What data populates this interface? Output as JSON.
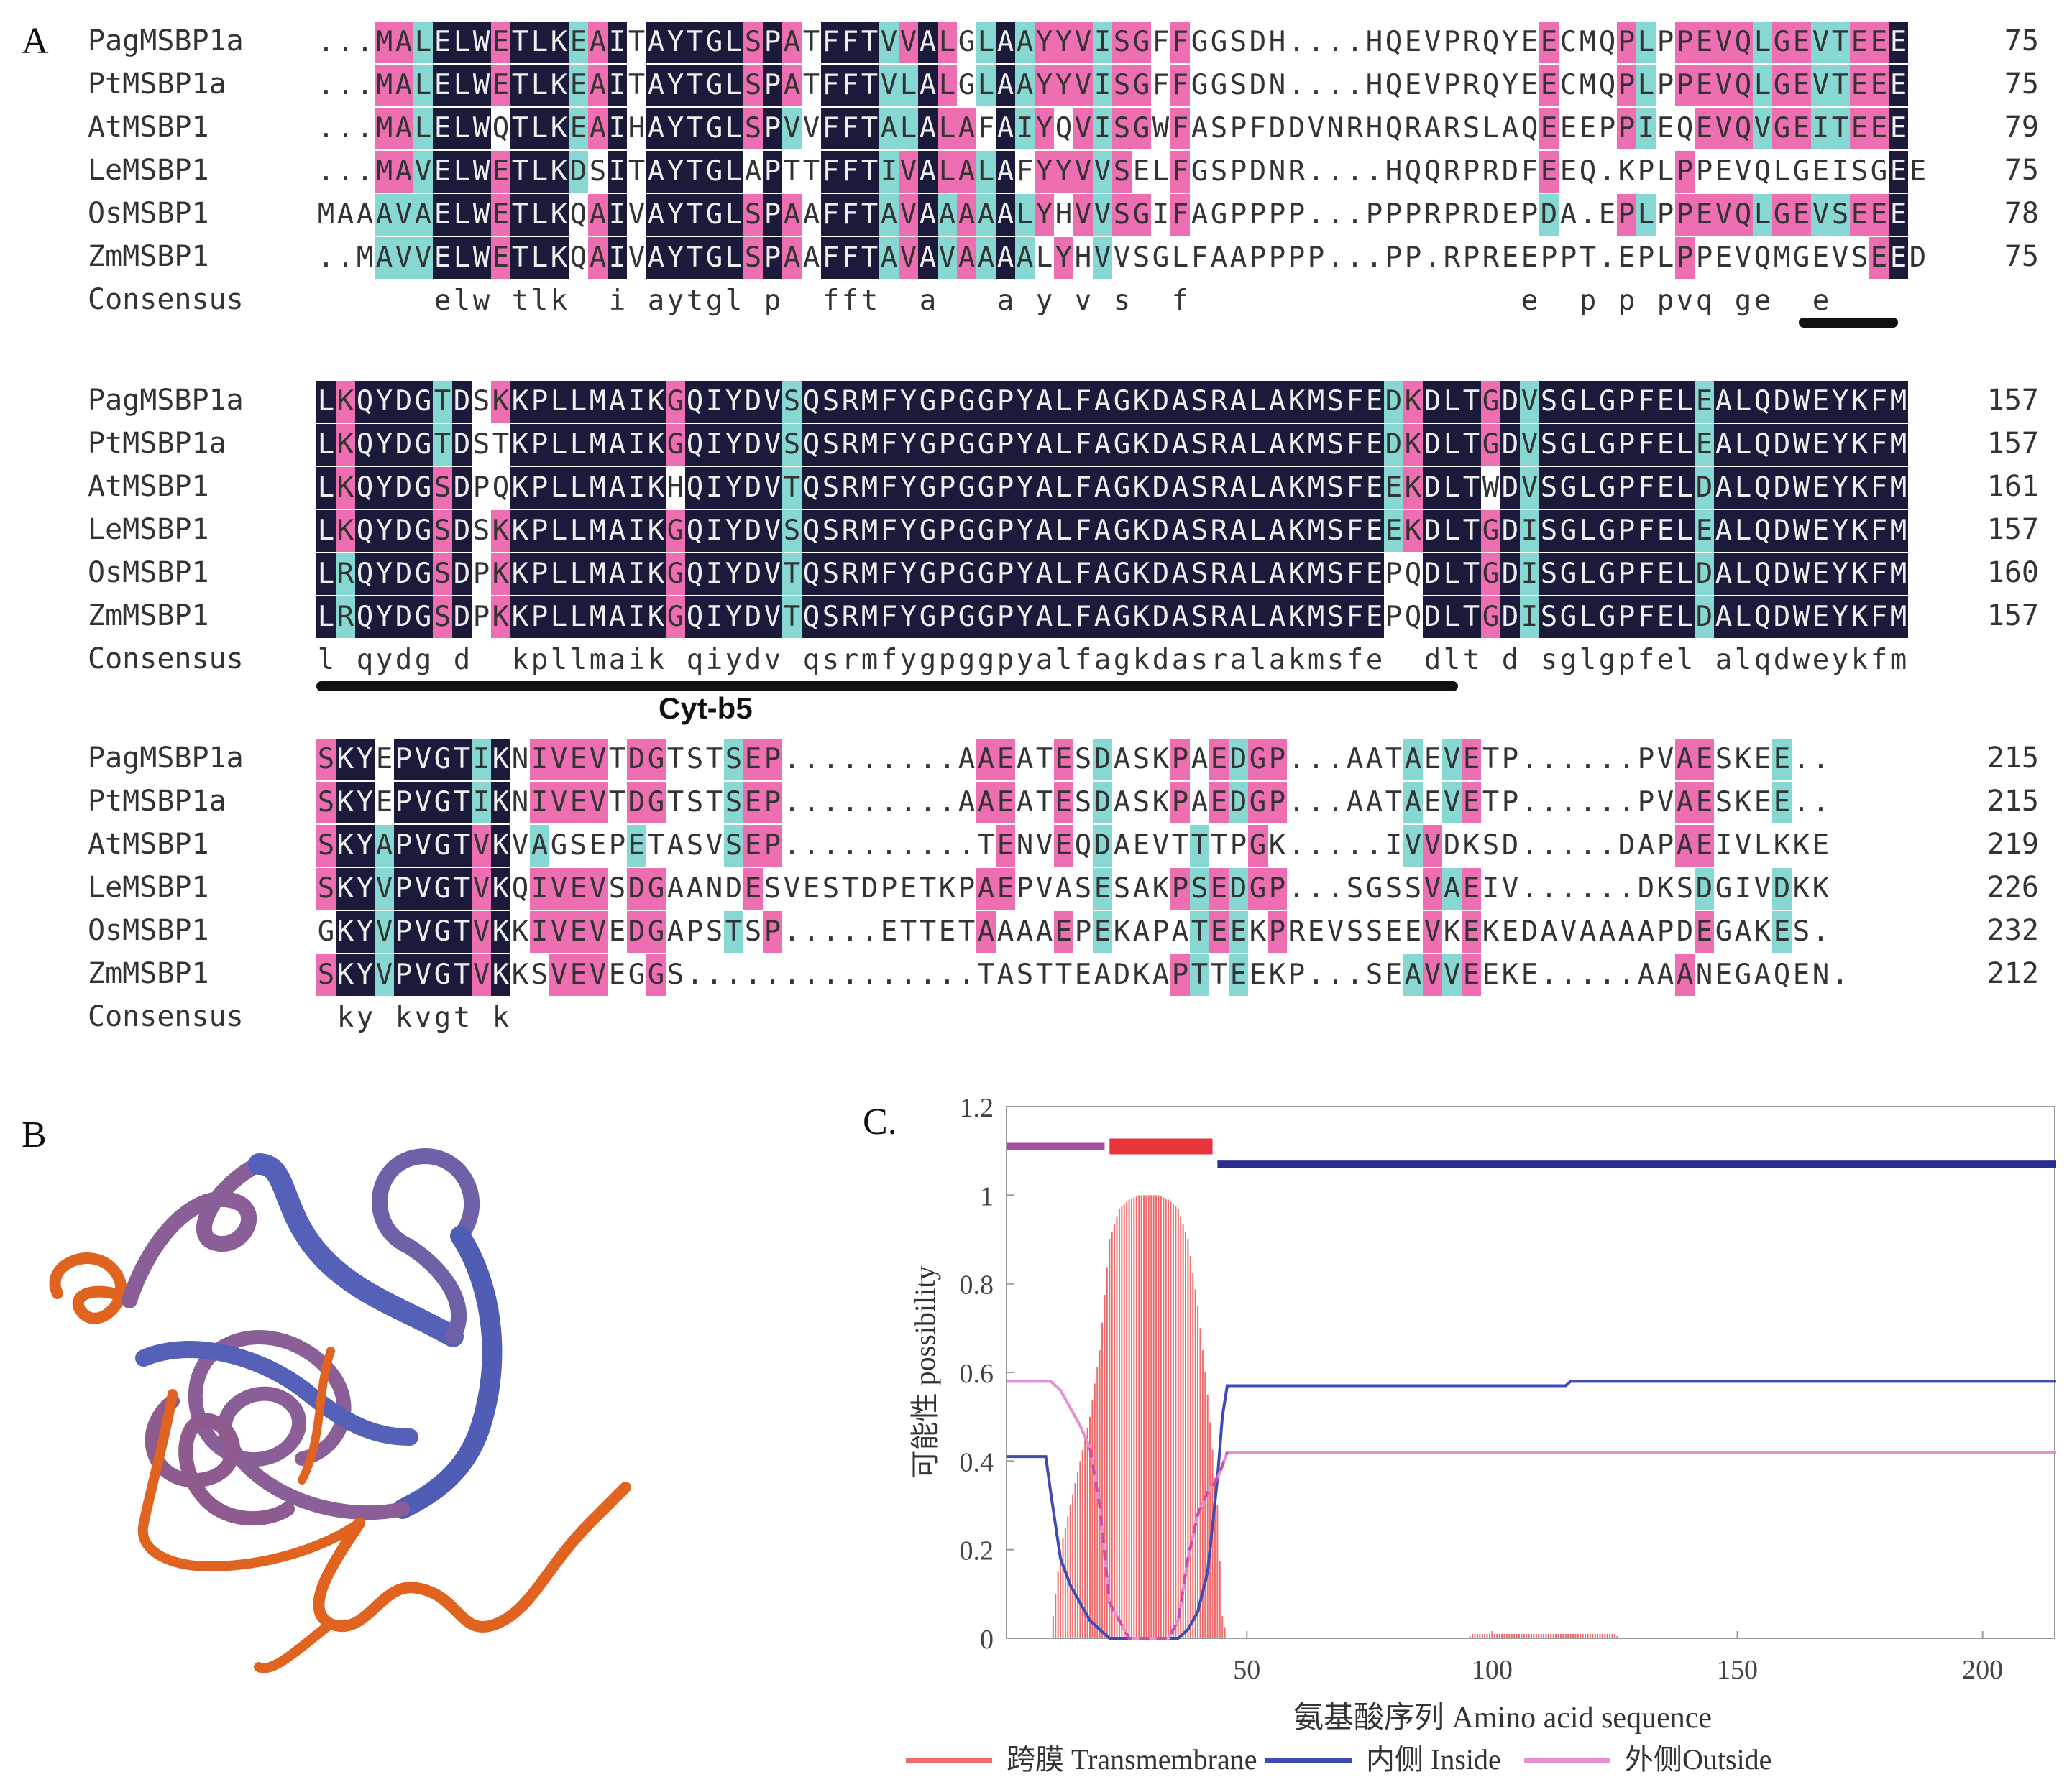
{
  "panel_labels": {
    "a": "A",
    "b": "B",
    "c": "C."
  },
  "alignment": {
    "blocks": [
      {
        "rows": [
          {
            "name": "PagMSBP1a",
            "seq": "...MALELWETLKEAITAYTGLSPATFFTVVALGLAAYYVISGFFGGSDH....HQEVPRQYEECMQPLPPEVQLGEVTEEE",
            "num": "75"
          },
          {
            "name": "PtMSBP1a",
            "seq": "...MALELWETLKEAITAYTGLSPATFFTVLALGLAAYYVISGFFGGSDN....HQEVPRQYEECMQPLPPEVQLGEVTEEE",
            "num": "75"
          },
          {
            "name": "AtMSBP1",
            "seq": "...MALELWQTLKEAIHAYTGLSPVVFFTALALAFAIYQVISGWFASPFDDVNRHQRARSLAQEEEPPIEQEVQVGEITEEE",
            "num": "79"
          },
          {
            "name": "LeMSBP1",
            "seq": "...MAVELWETLKDSITAYTGLAPTTFFTIVALALAFYYVVSELFGSPDNR....HQQRPRDFEEQ.KPLPPEVQLGEISGEE",
            "num": "75"
          },
          {
            "name": "OsMSBP1",
            "seq": "MAAAVAELWETLKQAIVAYTGLSPAAFFTAVAAAAALYHVVSGIFAGPPPP...PPPRPRDEPDA.EPLPPEVQLGEVSEEE",
            "num": "78"
          },
          {
            "name": "ZmMSBP1",
            "seq": "..MAVVELWETLKQAIVAYTGLSPAAFFTAVAVAAAALYHVVSGLFAAPPPP...PP.RPREEPPT.EPLPPEVQMGEVSEED",
            "num": "75"
          }
        ],
        "consensus": {
          "name": "Consensus",
          "seq": "      elw tlk  i aytgl p  fft  a   a y v s  f                 e  p p pvq ge  e"
        }
      },
      {
        "rows": [
          {
            "name": "PagMSBP1a",
            "seq": "LKQYDGTDSKKPLLMAIKGQIYDVSQSRMFYGPGGPYALFAGKDASRALAKMSFEDKDLTGDVSGLGPFELEALQDWEYKFM",
            "num": "157"
          },
          {
            "name": "PtMSBP1a",
            "seq": "LKQYDGTDSTKPLLMAIKGQIYDVSQSRMFYGPGGPYALFAGKDASRALAKMSFEDKDLTGDVSGLGPFELEALQDWEYKFM",
            "num": "157"
          },
          {
            "name": "AtMSBP1",
            "seq": "LKQYDGSDPQKPLLMAIKHQIYDVTQSRMFYGPGGPYALFAGKDASRALAKMSFEEKDLTWDVSGLGPFELDALQDWEYKFM",
            "num": "161"
          },
          {
            "name": "LeMSBP1",
            "seq": "LKQYDGSDSKKPLLMAIKGQIYDVSQSRMFYGPGGPYALFAGKDASRALAKMSFEEKDLTGDISGLGPFELEALQDWEYKFM",
            "num": "157"
          },
          {
            "name": "OsMSBP1",
            "seq": "LRQYDGSDPKKPLLMAIKGQIYDVTQSRMFYGPGGPYALFAGKDASRALAKMSFEPQDLTGDISGLGPFELDALQDWEYKFM",
            "num": "160"
          },
          {
            "name": "ZmMSBP1",
            "seq": "LRQYDGSDPKKPLLMAIKGQIYDVTQSRMFYGPGGPYALFAGKDASRALAKMSFEPQDLTGDISGLGPFELDALQDWEYKFM",
            "num": "157"
          }
        ],
        "consensus": {
          "name": "Consensus",
          "seq": "l qydg d  kpllmaik qiydv qsrmfygpggpyalfagkdasralakmsfe  dlt d sglgpfel alqdweykfm"
        }
      },
      {
        "rows": [
          {
            "name": "PagMSBP1a",
            "seq": "SKYEPVGTIKNIVEVTDGTSTSEP.........AAEATESDASKPAEDGP...AATAEVETP......PVAESKEE..",
            "num": "215"
          },
          {
            "name": "PtMSBP1a",
            "seq": "SKYEPVGTIKNIVEVTDGTSTSEP.........AAEATESDASKPAEDGP...AATAEVETP......PVAESKEE..",
            "num": "215"
          },
          {
            "name": "AtMSBP1",
            "seq": "SKYAPVGTVKVAGSEPETASVSEP..........TENVEQDAEVTTTPGK.....IVVDKSD.....DAPAEIVLKKE",
            "num": "219"
          },
          {
            "name": "LeMSBP1",
            "seq": "SKYVPVGTVKQIVEVSDGAANDESVESTDPETKPAEPVASESAKPSEDGP...SGSSVAEIV......DKSDGIVDKK",
            "num": "226"
          },
          {
            "name": "OsMSBP1",
            "seq": "GKYVPVGTVKKIVEVEDGAPSTSP.....ETTETAAAAEPEKAPATEEKPREVSSEEVKEKEDAVAAAAPDEGAKES.",
            "num": "232"
          },
          {
            "name": "ZmMSBP1",
            "seq": "SKYVPVGTVKKSVEVEGGS...............TASTTEADKAPTTEEKP...SEAVVEEKE.....AAANEGAQEN.",
            "num": "212"
          }
        ],
        "consensus": {
          "name": "Consensus",
          "seq": " ky kvgt k"
        }
      }
    ],
    "domain_label": "Cyt-b5"
  },
  "chart_data": {
    "type": "line",
    "ylabel": "可能性 possibility",
    "xlabel": "氨基酸序列 Amino acid sequence",
    "xlim": [
      1,
      215
    ],
    "ylim": [
      0,
      1.2
    ],
    "xticks": [
      50,
      100,
      150,
      200
    ],
    "yticks": [
      0,
      0.2,
      0.4,
      0.6,
      0.8,
      1,
      1.2
    ],
    "ytick_labels": [
      "0",
      "0.2",
      "0.4",
      "0.6",
      "0.8",
      "1",
      "1.2"
    ],
    "topology_bars": [
      {
        "label": "outside",
        "x": [
          1,
          21
        ],
        "y": 1.11,
        "color": "#a24fa3"
      },
      {
        "label": "transmembrane",
        "x": [
          22,
          43
        ],
        "y": 1.11,
        "color": "#e8353a"
      },
      {
        "label": "inside",
        "x": [
          44,
          215
        ],
        "y": 1.07,
        "color": "#2a2c8f"
      }
    ],
    "series": [
      {
        "name": "跨膜 Transmembrane",
        "color": "#ef6a6a",
        "x": [
          1,
          10,
          11,
          12,
          14,
          16,
          18,
          20,
          22,
          24,
          26,
          28,
          30,
          32,
          34,
          36,
          38,
          40,
          42,
          44,
          45,
          46,
          95,
          96,
          125,
          126,
          215
        ],
        "values": [
          0,
          0,
          0.1,
          0.2,
          0.3,
          0.4,
          0.5,
          0.65,
          0.9,
          0.97,
          0.99,
          1.0,
          1.0,
          1.0,
          0.99,
          0.97,
          0.9,
          0.75,
          0.55,
          0.3,
          0.05,
          0,
          0,
          0.01,
          0.01,
          0,
          0
        ]
      },
      {
        "name": "内侧 Inside",
        "color": "#3f4bb5",
        "x": [
          1,
          9,
          10,
          12,
          14,
          16,
          18,
          20,
          22,
          26,
          36,
          38,
          40,
          42,
          44,
          45,
          46,
          115,
          116,
          215
        ],
        "values": [
          0.41,
          0.41,
          0.33,
          0.18,
          0.12,
          0.08,
          0.04,
          0.02,
          0.0,
          0.0,
          0.0,
          0.02,
          0.06,
          0.15,
          0.36,
          0.5,
          0.57,
          0.57,
          0.58,
          0.58
        ]
      },
      {
        "name": "外侧Outside",
        "color": "#e58fd4",
        "x": [
          1,
          10,
          12,
          14,
          16,
          18,
          20,
          22,
          26,
          30,
          34,
          36,
          38,
          40,
          42,
          44,
          46,
          215
        ],
        "values": [
          0.58,
          0.58,
          0.56,
          0.52,
          0.48,
          0.43,
          0.3,
          0.08,
          0.0,
          0.0,
          0.0,
          0.04,
          0.18,
          0.28,
          0.33,
          0.36,
          0.42,
          0.42
        ]
      }
    ],
    "legend": [
      "跨膜 Transmembrane",
      "内侧 Inside",
      "外侧Outside"
    ]
  },
  "colors": {
    "identical": "#1c1a3a",
    "high_similarity": "#ee6fb1",
    "similar": "#87d7d3",
    "structure_blue": "#5561b8",
    "structure_orange": "#e0641f"
  }
}
